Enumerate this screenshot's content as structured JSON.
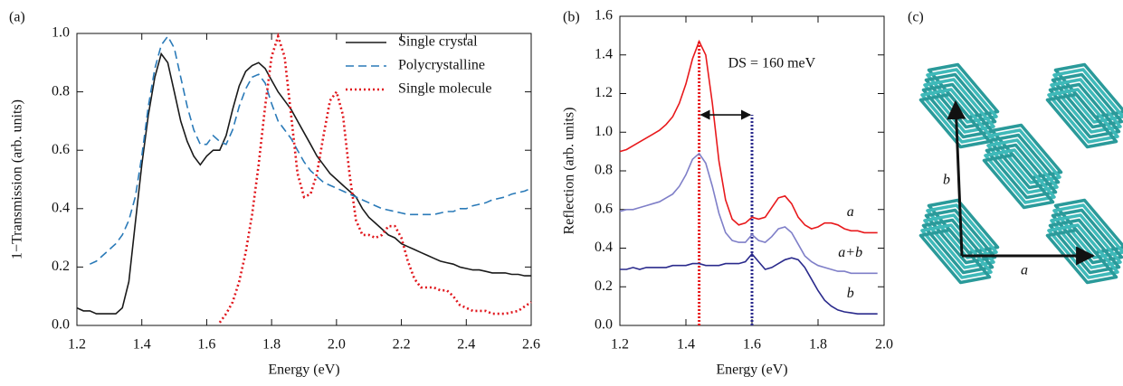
{
  "chart_data": [
    {
      "type": "line",
      "panel_label": "(a)",
      "x_label": "Energy (eV)",
      "y_label": "1−Transmission (arb. units)",
      "xlim": [
        1.2,
        2.6
      ],
      "ylim": [
        0,
        1.0
      ],
      "xticks": [
        1.2,
        1.4,
        1.6,
        1.8,
        {
          "value": 2.0,
          "label": "2.0"
        },
        2.2,
        2.4,
        2.6
      ],
      "yticks": [
        {
          "value": 0,
          "label": "0.0"
        },
        0.2,
        0.4,
        0.6,
        0.8,
        {
          "value": 1.0,
          "label": "1.0"
        }
      ],
      "legend": "top-right",
      "x": [
        1.2,
        1.22,
        1.24,
        1.26,
        1.28,
        1.3,
        1.32,
        1.34,
        1.36,
        1.38,
        1.4,
        1.42,
        1.44,
        1.46,
        1.48,
        1.5,
        1.52,
        1.54,
        1.56,
        1.58,
        1.6,
        1.62,
        1.64,
        1.66,
        1.68,
        1.7,
        1.72,
        1.74,
        1.76,
        1.78,
        1.8,
        1.82,
        1.84,
        1.86,
        1.88,
        1.9,
        1.92,
        1.94,
        1.96,
        1.98,
        2.0,
        2.02,
        2.04,
        2.06,
        2.08,
        2.1,
        2.12,
        2.14,
        2.16,
        2.18,
        2.2,
        2.22,
        2.24,
        2.26,
        2.28,
        2.3,
        2.32,
        2.34,
        2.36,
        2.38,
        2.4,
        2.42,
        2.44,
        2.46,
        2.48,
        2.5,
        2.52,
        2.54,
        2.56,
        2.58,
        2.6
      ],
      "series": [
        {
          "name": "Single crystal",
          "color": "#1a1a1a",
          "dash": "solid",
          "values": [
            0.06,
            0.05,
            0.05,
            0.04,
            0.04,
            0.04,
            0.04,
            0.06,
            0.15,
            0.35,
            0.55,
            0.72,
            0.85,
            0.93,
            0.9,
            0.8,
            0.7,
            0.63,
            0.58,
            0.55,
            0.58,
            0.6,
            0.6,
            0.65,
            0.74,
            0.82,
            0.87,
            0.89,
            0.9,
            0.88,
            0.84,
            0.8,
            0.77,
            0.74,
            0.7,
            0.66,
            0.62,
            0.58,
            0.55,
            0.52,
            0.5,
            0.48,
            0.46,
            0.44,
            0.4,
            0.37,
            0.35,
            0.33,
            0.31,
            0.3,
            0.28,
            0.27,
            0.26,
            0.25,
            0.24,
            0.23,
            0.22,
            0.215,
            0.21,
            0.2,
            0.195,
            0.19,
            0.19,
            0.185,
            0.18,
            0.18,
            0.18,
            0.175,
            0.175,
            0.17,
            0.17
          ]
        },
        {
          "name": "Polycrystalline",
          "color": "#2a7ab8",
          "dash": "dashed",
          "values": [
            null,
            null,
            0.21,
            0.22,
            0.24,
            0.26,
            0.28,
            0.31,
            0.36,
            0.44,
            0.58,
            0.75,
            0.88,
            0.96,
            0.99,
            0.95,
            0.85,
            0.75,
            0.67,
            0.62,
            0.62,
            0.65,
            0.63,
            0.62,
            0.67,
            0.75,
            0.81,
            0.85,
            0.86,
            0.83,
            0.76,
            0.7,
            0.67,
            0.64,
            0.6,
            0.56,
            0.53,
            0.51,
            0.49,
            0.48,
            0.47,
            0.46,
            0.45,
            0.44,
            0.43,
            0.42,
            0.41,
            0.4,
            0.395,
            0.39,
            0.385,
            0.38,
            0.38,
            0.38,
            0.38,
            0.38,
            0.385,
            0.39,
            0.39,
            0.4,
            0.4,
            0.41,
            0.415,
            0.42,
            0.43,
            0.435,
            0.44,
            0.45,
            0.455,
            0.46,
            0.47
          ]
        },
        {
          "name": "Single molecule",
          "color": "#e0161c",
          "dash": "dotted",
          "values": [
            null,
            null,
            null,
            null,
            null,
            null,
            null,
            null,
            null,
            null,
            null,
            null,
            null,
            null,
            null,
            null,
            null,
            null,
            null,
            null,
            null,
            null,
            0.01,
            0.04,
            0.08,
            0.15,
            0.25,
            0.38,
            0.55,
            0.75,
            0.92,
            0.99,
            0.92,
            0.72,
            0.52,
            0.44,
            0.45,
            0.52,
            0.65,
            0.77,
            0.8,
            0.72,
            0.52,
            0.36,
            0.31,
            0.31,
            0.3,
            0.31,
            0.34,
            0.34,
            0.3,
            0.22,
            0.16,
            0.13,
            0.13,
            0.13,
            0.12,
            0.12,
            0.1,
            0.07,
            0.06,
            0.05,
            0.05,
            0.05,
            0.04,
            0.04,
            0.04,
            0.045,
            0.05,
            0.065,
            0.08
          ]
        }
      ]
    },
    {
      "type": "line",
      "panel_label": "(b)",
      "x_label": "Energy (eV)",
      "y_label": "Reflection (arb. units)",
      "xlim": [
        1.2,
        2.0
      ],
      "ylim": [
        0,
        1.6
      ],
      "xticks": [
        1.2,
        1.4,
        1.6,
        1.8,
        {
          "value": 2.0,
          "label": "2.0"
        }
      ],
      "yticks": [
        {
          "value": 0,
          "label": "0.0"
        },
        0.2,
        0.4,
        0.6,
        0.8,
        {
          "value": 1.0,
          "label": "1.0"
        },
        1.2,
        1.4,
        1.6
      ],
      "x": [
        1.2,
        1.22,
        1.24,
        1.26,
        1.28,
        1.3,
        1.32,
        1.34,
        1.36,
        1.38,
        1.4,
        1.42,
        1.44,
        1.46,
        1.48,
        1.5,
        1.52,
        1.54,
        1.56,
        1.58,
        1.6,
        1.62,
        1.64,
        1.66,
        1.68,
        1.7,
        1.72,
        1.74,
        1.76,
        1.78,
        1.8,
        1.82,
        1.84,
        1.86,
        1.88,
        1.9,
        1.92,
        1.94,
        1.96,
        1.98
      ],
      "series": [
        {
          "name": "a",
          "color": "#e8191c",
          "dash": "solid",
          "values": [
            0.9,
            0.91,
            0.93,
            0.95,
            0.97,
            0.99,
            1.01,
            1.04,
            1.08,
            1.15,
            1.25,
            1.38,
            1.47,
            1.4,
            1.15,
            0.85,
            0.65,
            0.55,
            0.52,
            0.53,
            0.56,
            0.55,
            0.56,
            0.61,
            0.66,
            0.67,
            0.63,
            0.56,
            0.52,
            0.5,
            0.51,
            0.53,
            0.53,
            0.52,
            0.5,
            0.49,
            0.49,
            0.48,
            0.48,
            0.48
          ]
        },
        {
          "name": "a+b",
          "color": "#7f7fc8",
          "dash": "solid",
          "values": [
            0.59,
            0.6,
            0.6,
            0.61,
            0.62,
            0.63,
            0.64,
            0.66,
            0.68,
            0.72,
            0.78,
            0.86,
            0.89,
            0.84,
            0.72,
            0.58,
            0.48,
            0.44,
            0.43,
            0.43,
            0.47,
            0.44,
            0.43,
            0.46,
            0.5,
            0.51,
            0.48,
            0.42,
            0.36,
            0.33,
            0.31,
            0.3,
            0.29,
            0.28,
            0.28,
            0.27,
            0.27,
            0.27,
            0.27,
            0.27
          ]
        },
        {
          "name": "b",
          "color": "#2a2a8c",
          "dash": "solid",
          "values": [
            0.29,
            0.29,
            0.3,
            0.29,
            0.3,
            0.3,
            0.3,
            0.3,
            0.31,
            0.31,
            0.31,
            0.32,
            0.32,
            0.31,
            0.31,
            0.31,
            0.32,
            0.32,
            0.32,
            0.33,
            0.37,
            0.33,
            0.29,
            0.3,
            0.32,
            0.34,
            0.35,
            0.34,
            0.3,
            0.24,
            0.18,
            0.13,
            0.1,
            0.08,
            0.07,
            0.065,
            0.06,
            0.06,
            0.06,
            0.06
          ]
        }
      ],
      "vlines": [
        {
          "x": 1.44,
          "y_end": 1.47,
          "color": "#e8191c"
        },
        {
          "x": 1.6,
          "y_end": 1.09,
          "color": "#2a2a8c"
        }
      ],
      "arrow_y": 1.09,
      "annotation": "DS = 160 meV"
    }
  ],
  "diagram": {
    "panel_label": "(c)",
    "axis_b": "b",
    "axis_a": "a"
  }
}
